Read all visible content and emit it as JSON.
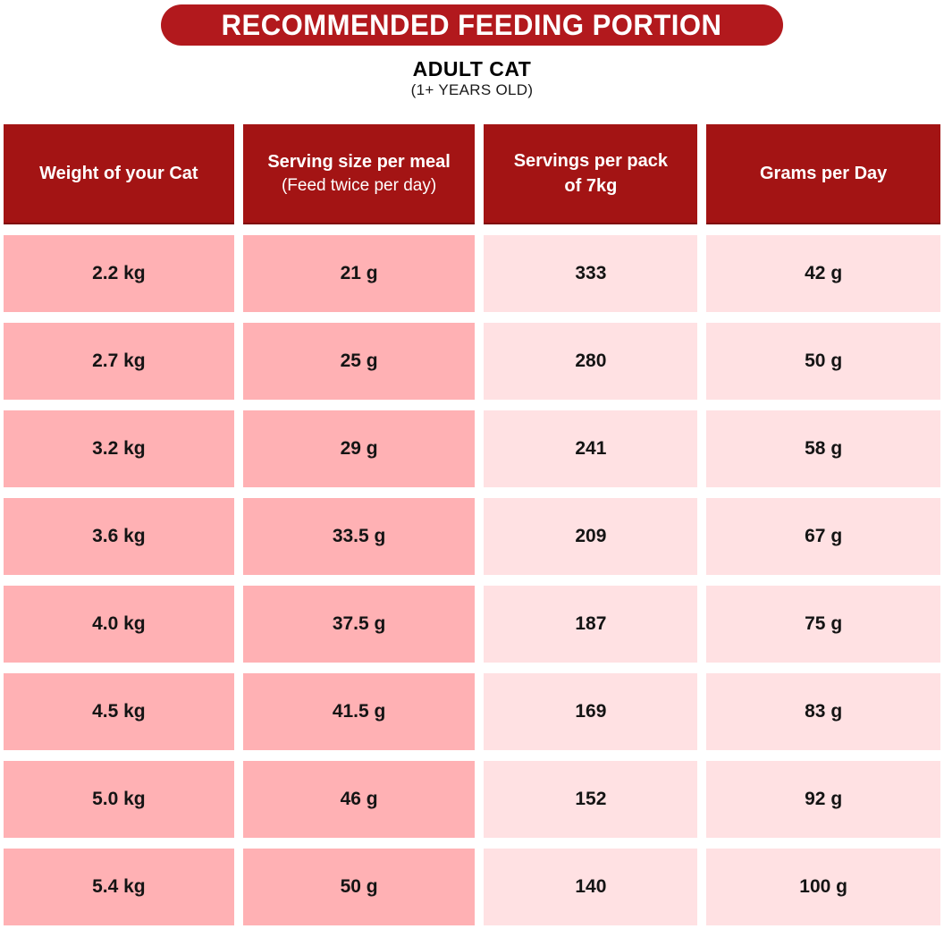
{
  "header": {
    "title": "RECOMMENDED FEEDING PORTION",
    "subtitle": "ADULT CAT",
    "subtitle_note": "(1+ YEARS OLD)"
  },
  "table": {
    "columns": [
      {
        "label": "Weight of your Cat",
        "sublabel": ""
      },
      {
        "label": "Serving size per meal",
        "sublabel": "(Feed twice per day)"
      },
      {
        "label": "Servings per pack of 7kg",
        "sublabel": ""
      },
      {
        "label": "Grams per Day",
        "sublabel": ""
      }
    ],
    "rows": [
      [
        "2.2 kg",
        "21 g",
        "333",
        "42 g"
      ],
      [
        "2.7 kg",
        "25 g",
        "280",
        "50 g"
      ],
      [
        "3.2 kg",
        "29 g",
        "241",
        "58 g"
      ],
      [
        "3.6 kg",
        "33.5 g",
        "209",
        "67 g"
      ],
      [
        "4.0 kg",
        "37.5 g",
        "187",
        "75 g"
      ],
      [
        "4.5 kg",
        "41.5 g",
        "169",
        "83 g"
      ],
      [
        "5.0 kg",
        "46 g",
        "152",
        "92 g"
      ],
      [
        "5.4 kg",
        "50 g",
        "140",
        "100 g"
      ]
    ]
  },
  "chart_data": {
    "type": "table",
    "title": "RECOMMENDED FEEDING PORTION",
    "subtitle": "ADULT CAT (1+ YEARS OLD)",
    "columns": [
      "Weight of your Cat",
      "Serving size per meal (Feed twice per day)",
      "Servings per pack of 7kg",
      "Grams per Day"
    ],
    "rows": [
      [
        "2.2 kg",
        "21 g",
        "333",
        "42 g"
      ],
      [
        "2.7 kg",
        "25 g",
        "280",
        "50 g"
      ],
      [
        "3.2 kg",
        "29 g",
        "241",
        "58 g"
      ],
      [
        "3.6 kg",
        "33.5 g",
        "209",
        "67 g"
      ],
      [
        "4.0 kg",
        "37.5 g",
        "187",
        "75 g"
      ],
      [
        "4.5 kg",
        "41.5 g",
        "169",
        "83 g"
      ],
      [
        "5.0 kg",
        "46 g",
        "152",
        "92 g"
      ],
      [
        "5.4 kg",
        "50 g",
        "140",
        "100 g"
      ]
    ]
  },
  "colors": {
    "banner-red": "#b2191d",
    "header-red": "#a31414",
    "pink-dark": "#ffb1b4",
    "pink-light": "#ffe1e3"
  }
}
